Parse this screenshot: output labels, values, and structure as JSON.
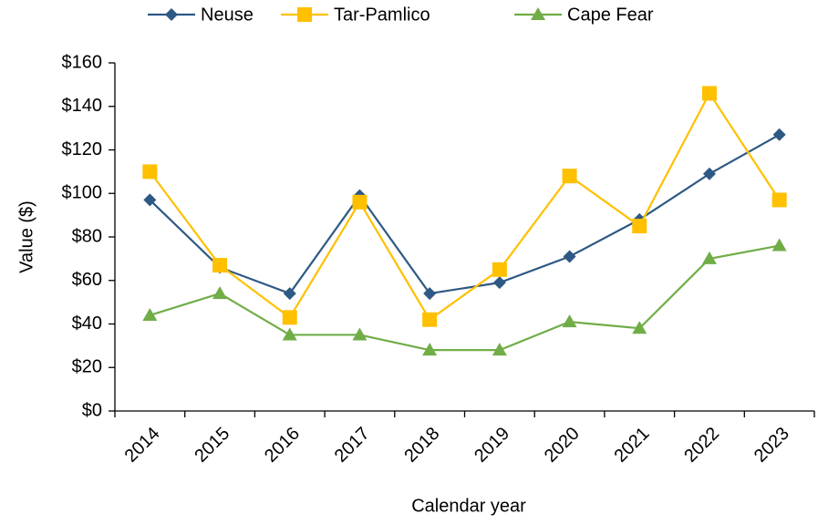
{
  "chart_data": {
    "type": "line",
    "x_label": "Calendar year",
    "y_label": "Value ($)",
    "categories": [
      "2014",
      "2015",
      "2016",
      "2017",
      "2018",
      "2019",
      "2020",
      "2021",
      "2022",
      "2023"
    ],
    "series": [
      {
        "name": "Neuse",
        "color": "#2e5984",
        "marker": "diamond",
        "values": [
          97,
          66,
          54,
          99,
          54,
          59,
          71,
          88,
          109,
          127
        ]
      },
      {
        "name": "Tar-Pamlico",
        "color": "#ffc000",
        "marker": "square",
        "values": [
          110,
          67,
          43,
          96,
          42,
          65,
          108,
          85,
          146,
          97
        ]
      },
      {
        "name": "Cape Fear",
        "color": "#70ad47",
        "marker": "triangle",
        "values": [
          44,
          54,
          35,
          35,
          28,
          28,
          41,
          38,
          70,
          76
        ]
      }
    ],
    "ylim": [
      0,
      160
    ],
    "yticks": [
      {
        "value": 0,
        "label": "$0"
      },
      {
        "value": 20,
        "label": "$20"
      },
      {
        "value": 40,
        "label": "$40"
      },
      {
        "value": 60,
        "label": "$60"
      },
      {
        "value": 80,
        "label": "$80"
      },
      {
        "value": 100,
        "label": "$100"
      },
      {
        "value": 120,
        "label": "$120"
      },
      {
        "value": 140,
        "label": "$140"
      },
      {
        "value": 160,
        "label": "$160"
      }
    ],
    "legend": "top"
  }
}
